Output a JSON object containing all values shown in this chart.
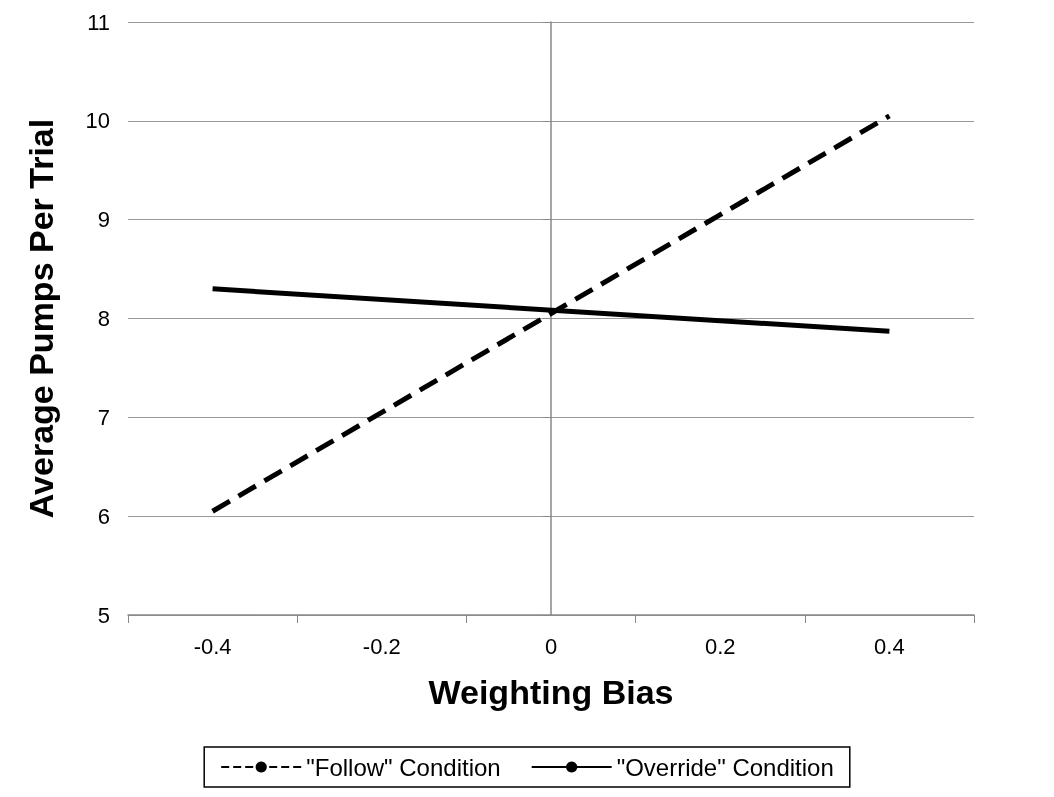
{
  "chart_data": {
    "type": "line",
    "xlabel": "Weighting Bias",
    "ylabel": "Average Pumps Per Trial",
    "x": [
      -0.4,
      0.4
    ],
    "series": [
      {
        "name": "\"Follow\" Condition",
        "color": "#000000",
        "values": [
          6.05,
          10.05
        ],
        "line_style": "dashed"
      },
      {
        "name": "\"Override\" Condition",
        "color": "#000000",
        "values": [
          8.3,
          7.87
        ],
        "line_style": "solid"
      }
    ],
    "xlim": [
      -0.5,
      0.5
    ],
    "xticks": [
      {
        "value": -0.5,
        "label": null
      },
      -0.4,
      {
        "value": -0.3,
        "label": null
      },
      -0.2,
      {
        "value": -0.1,
        "label": null
      },
      0,
      {
        "value": 0.1,
        "label": null
      },
      0.2,
      {
        "value": 0.3,
        "label": null
      },
      0.4,
      {
        "value": 0.5,
        "label": null
      }
    ],
    "ylim": [
      5,
      11
    ],
    "yticks": [
      5,
      6,
      7,
      8,
      9,
      10,
      11
    ],
    "grid": "y",
    "legend": "bottom",
    "marker": "none"
  }
}
